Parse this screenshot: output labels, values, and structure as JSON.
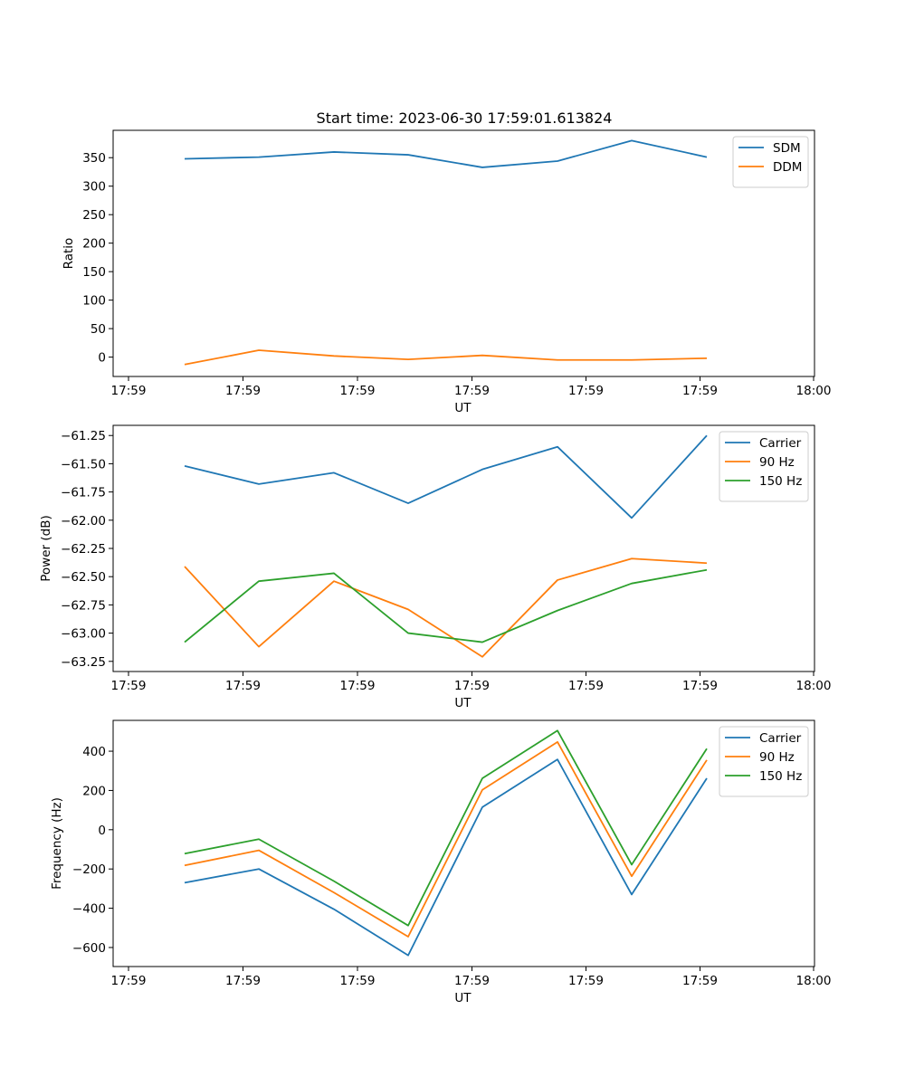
{
  "title": "Start time: 2023-06-30 17:59:01.613824",
  "chart_data": [
    {
      "type": "line",
      "xlabel": "UT",
      "ylabel": "Ratio",
      "x_tick_labels": [
        "17:59",
        "17:59",
        "17:59",
        "17:59",
        "17:59",
        "17:59",
        "18:00"
      ],
      "y_ticks": [
        0,
        50,
        100,
        150,
        200,
        250,
        300,
        350
      ],
      "ylim": [
        -34,
        398
      ],
      "legend_position": "upper right",
      "series": [
        {
          "name": "SDM",
          "color": "#1f77b4",
          "values": [
            348,
            351,
            360,
            355,
            333,
            344,
            380,
            351
          ]
        },
        {
          "name": "DDM",
          "color": "#ff7f0e",
          "values": [
            -13,
            12,
            2,
            -4,
            3,
            -5,
            -5,
            -2
          ]
        }
      ]
    },
    {
      "type": "line",
      "xlabel": "UT",
      "ylabel": "Power (dB)",
      "x_tick_labels": [
        "17:59",
        "17:59",
        "17:59",
        "17:59",
        "17:59",
        "17:59",
        "18:00"
      ],
      "y_ticks": [
        -63.25,
        -63.0,
        -62.75,
        -62.5,
        -62.25,
        -62.0,
        -61.75,
        -61.5,
        -61.25
      ],
      "y_tick_labels": [
        "−63.25",
        "−63.00",
        "−62.75",
        "−62.50",
        "−62.25",
        "−62.00",
        "−61.75",
        "−61.50",
        "−61.25"
      ],
      "ylim": [
        -63.34,
        -61.16
      ],
      "legend_position": "upper right",
      "series": [
        {
          "name": "Carrier",
          "color": "#1f77b4",
          "values": [
            -61.52,
            -61.68,
            -61.58,
            -61.85,
            -61.55,
            -61.35,
            -61.98,
            -61.25
          ]
        },
        {
          "name": "90 Hz",
          "color": "#ff7f0e",
          "values": [
            -62.41,
            -63.12,
            -62.54,
            -62.79,
            -63.21,
            -62.53,
            -62.34,
            -62.38
          ]
        },
        {
          "name": "150 Hz",
          "color": "#2ca02c",
          "values": [
            -63.08,
            -62.54,
            -62.47,
            -63.0,
            -63.08,
            -62.8,
            -62.56,
            -62.44
          ]
        }
      ]
    },
    {
      "type": "line",
      "xlabel": "UT",
      "ylabel": "Frequency (Hz)",
      "x_tick_labels": [
        "17:59",
        "17:59",
        "17:59",
        "17:59",
        "17:59",
        "17:59",
        "18:00"
      ],
      "y_ticks": [
        -600,
        -400,
        -200,
        0,
        200,
        400
      ],
      "y_tick_labels": [
        "−600",
        "−400",
        "−200",
        "0",
        "200",
        "400"
      ],
      "ylim": [
        -697,
        557
      ],
      "legend_position": "upper right",
      "series": [
        {
          "name": "Carrier",
          "color": "#1f77b4",
          "values": [
            -270,
            -200,
            -405,
            -640,
            115,
            358,
            -330,
            262
          ]
        },
        {
          "name": "90 Hz",
          "color": "#ff7f0e",
          "values": [
            -182,
            -105,
            -320,
            -545,
            203,
            447,
            -237,
            355
          ]
        },
        {
          "name": "150 Hz",
          "color": "#2ca02c",
          "values": [
            -122,
            -48,
            -262,
            -488,
            262,
            505,
            -178,
            413
          ]
        }
      ]
    }
  ]
}
